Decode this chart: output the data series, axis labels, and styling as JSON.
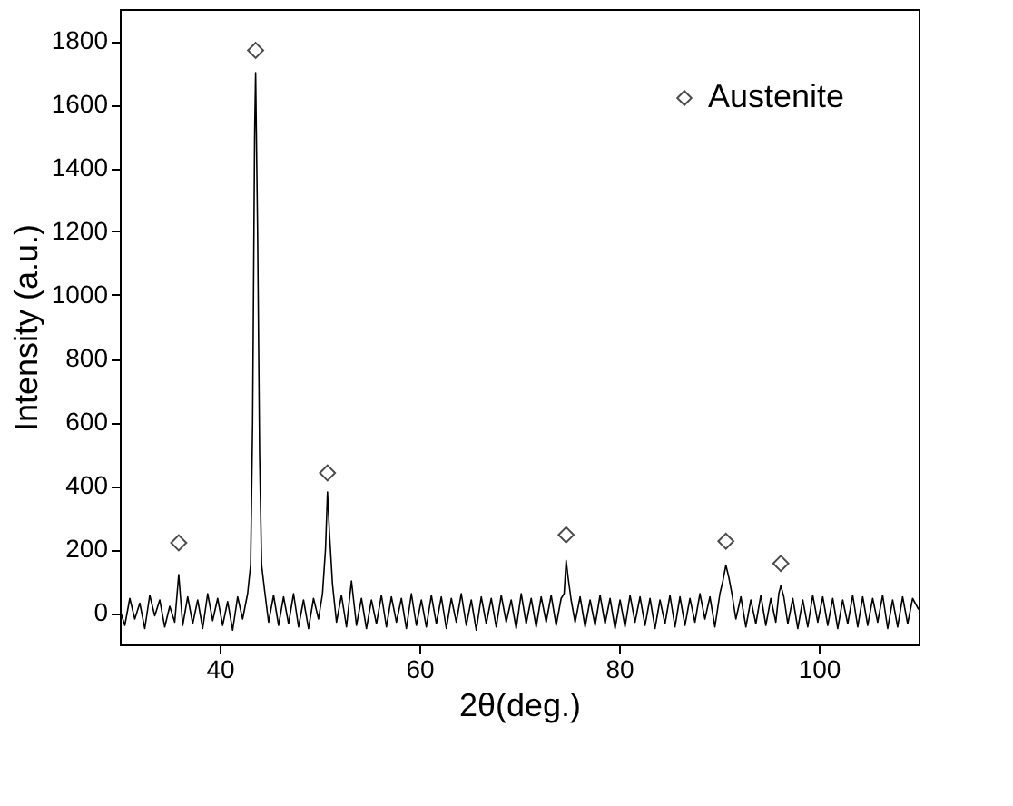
{
  "chart_data": {
    "type": "line",
    "xlabel": "2θ(deg.)",
    "ylabel": "Intensity (a.u.)",
    "xlim": [
      30,
      110
    ],
    "ylim": [
      -100,
      1900
    ],
    "xticks": [
      40,
      60,
      80,
      100
    ],
    "yticks": [
      0,
      200,
      400,
      600,
      800,
      1000,
      1200,
      1400,
      1600,
      1800
    ],
    "grid": false,
    "legend": "top right",
    "series": [
      {
        "color": "#000000",
        "line_style": "solid",
        "marker": "none",
        "x": [
          30,
          30.5,
          31,
          31.5,
          32,
          32.5,
          33,
          33.5,
          34,
          34.5,
          35,
          35.5,
          35.9,
          36.3,
          36.8,
          37.3,
          37.8,
          38.3,
          38.8,
          39.3,
          39.8,
          40.3,
          40.8,
          41.3,
          41.8,
          42.3,
          42.8,
          43.1,
          43.3,
          43.5,
          43.6,
          43.8,
          44.0,
          44.2,
          44.5,
          44.9,
          45.4,
          45.9,
          46.4,
          46.9,
          47.4,
          47.9,
          48.4,
          48.9,
          49.4,
          49.9,
          50.3,
          50.6,
          50.8,
          51.0,
          51.3,
          51.7,
          52.2,
          52.7,
          53.2,
          53.7,
          54.2,
          54.7,
          55.2,
          55.7,
          56.2,
          56.7,
          57.2,
          57.7,
          58.2,
          58.7,
          59.2,
          59.7,
          60.2,
          60.7,
          61.2,
          61.7,
          62.2,
          62.7,
          63.2,
          63.7,
          64.2,
          64.7,
          65.2,
          65.7,
          66.2,
          66.7,
          67.2,
          67.7,
          68.2,
          68.7,
          69.2,
          69.7,
          70.2,
          70.7,
          71.2,
          71.7,
          72.2,
          72.7,
          73.2,
          73.7,
          74.2,
          74.5,
          74.7,
          74.9,
          75.2,
          75.6,
          76.1,
          76.6,
          77.1,
          77.6,
          78.1,
          78.6,
          79.1,
          79.6,
          80.1,
          80.6,
          81.1,
          81.6,
          82.1,
          82.6,
          83.1,
          83.6,
          84.1,
          84.6,
          85.1,
          85.6,
          86.1,
          86.6,
          87.1,
          87.6,
          88.1,
          88.6,
          89.1,
          89.6,
          90.1,
          90.4,
          90.7,
          91.0,
          91.3,
          91.7,
          92.2,
          92.7,
          93.2,
          93.7,
          94.2,
          94.7,
          95.2,
          95.7,
          96.0,
          96.2,
          96.5,
          96.9,
          97.4,
          97.9,
          98.4,
          98.9,
          99.4,
          99.9,
          100.4,
          100.9,
          101.4,
          101.9,
          102.4,
          102.9,
          103.4,
          103.9,
          104.4,
          104.9,
          105.4,
          105.9,
          106.4,
          106.9,
          107.4,
          107.9,
          108.4,
          108.9,
          109.4,
          110
        ],
        "values": [
          10,
          -40,
          45,
          -20,
          30,
          -50,
          55,
          -10,
          40,
          -45,
          20,
          -30,
          120,
          -40,
          50,
          -35,
          40,
          -50,
          60,
          -25,
          45,
          -40,
          35,
          -55,
          50,
          -20,
          60,
          150,
          600,
          1500,
          1700,
          1200,
          500,
          150,
          70,
          -30,
          55,
          -40,
          50,
          -35,
          60,
          -45,
          40,
          -50,
          45,
          -20,
          60,
          200,
          380,
          250,
          90,
          -30,
          55,
          -45,
          100,
          -40,
          45,
          -50,
          40,
          -35,
          55,
          -45,
          50,
          -30,
          45,
          -50,
          60,
          -40,
          40,
          -45,
          55,
          -35,
          50,
          -50,
          45,
          -30,
          60,
          -40,
          40,
          -55,
          50,
          -35,
          45,
          -45,
          55,
          -30,
          40,
          -50,
          60,
          -35,
          45,
          -45,
          50,
          -30,
          55,
          -40,
          45,
          60,
          165,
          110,
          40,
          -30,
          50,
          -45,
          40,
          -40,
          55,
          -35,
          45,
          -50,
          40,
          -45,
          55,
          -30,
          50,
          -40,
          45,
          -50,
          40,
          -35,
          55,
          -45,
          50,
          -40,
          45,
          -30,
          60,
          -20,
          50,
          -45,
          60,
          100,
          150,
          110,
          60,
          -20,
          50,
          -45,
          40,
          -35,
          55,
          -40,
          45,
          -30,
          60,
          85,
          50,
          -35,
          45,
          -50,
          40,
          -45,
          55,
          -30,
          50,
          -40,
          45,
          -50,
          40,
          -35,
          55,
          -45,
          50,
          -40,
          45,
          -30,
          55,
          -50,
          40,
          -45,
          50,
          -35,
          45,
          10
        ]
      },
      {
        "type": "scatter",
        "name": "Austenite",
        "color": "#000000",
        "marker": "diamond",
        "x": [
          35.9,
          43.6,
          50.8,
          74.7,
          90.7,
          96.2
        ],
        "values": [
          220,
          1770,
          440,
          245,
          225,
          155
        ]
      }
    ]
  }
}
